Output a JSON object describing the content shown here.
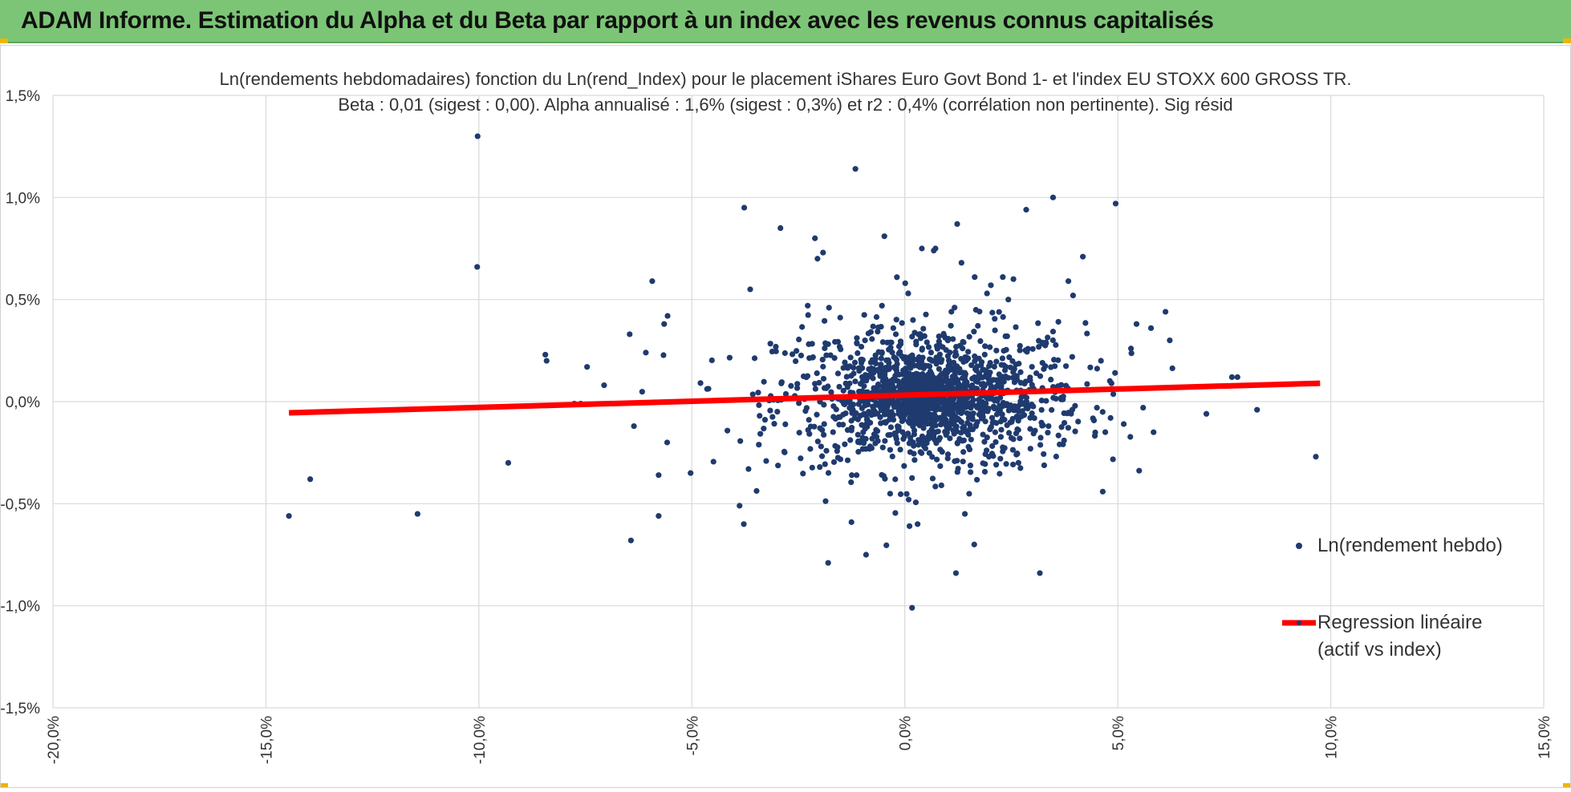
{
  "banner": {
    "title": "ADAM Informe. Estimation du Alpha et du Beta par rapport à un index avec les revenus connus capitalisés",
    "background": "#7cc576"
  },
  "colors": {
    "points": "#1f3a6e",
    "regression": "#ff0000",
    "grid": "#d9d9d9",
    "axis_text": "#333333"
  },
  "chart_data": {
    "type": "scatter",
    "title": "Ln(rendements hebdomadaires) fonction du Ln(rend_Index) pour le placement iShares Euro Govt Bond 1- et l'index EU STOXX 600 GROSS TR.",
    "subtitle": "Beta : 0,01 (sigest : 0,00). Alpha annualisé : 1,6% (sigest : 0,3%) et r2 : 0,4% (corrélation non pertinente). Sig résid",
    "xlabel": "",
    "ylabel": "",
    "xlim": [
      -0.2,
      0.15
    ],
    "ylim": [
      -0.015,
      0.015
    ],
    "x_ticks": [
      -0.2,
      -0.15,
      -0.1,
      -0.05,
      0.0,
      0.05,
      0.1,
      0.15
    ],
    "x_tick_labels": [
      "-20,0%",
      "-15,0%",
      "-10,0%",
      "-5,0%",
      "0,0%",
      "5,0%",
      "10,0%",
      "15,0%"
    ],
    "y_ticks": [
      0.015,
      0.01,
      0.005,
      0.0,
      -0.005,
      -0.01,
      -0.015
    ],
    "y_tick_labels": [
      "1,5%",
      "1,0%",
      "0,5%",
      "0,0%",
      "-0,5%",
      "-1,0%",
      "-1,5%"
    ],
    "grid": true,
    "legend_position": "right",
    "series": [
      {
        "name": "Ln(rendement hebdo)",
        "kind": "points",
        "points": [
          [
            -0.1003,
            0.013
          ],
          [
            -0.1004,
            0.0066
          ],
          [
            -0.0116,
            0.0114
          ],
          [
            0.0348,
            0.01
          ],
          [
            0.0495,
            0.0097
          ],
          [
            0.0285,
            0.0094
          ],
          [
            -0.0377,
            0.0095
          ],
          [
            -0.0048,
            0.0081
          ],
          [
            0.004,
            0.0075
          ],
          [
            0.0418,
            0.0071
          ],
          [
            -0.0593,
            0.0059
          ],
          [
            -0.0557,
            0.0042
          ],
          [
            -0.0565,
            0.0038
          ],
          [
            0.0612,
            0.0044
          ],
          [
            0.0622,
            0.003
          ],
          [
            0.0384,
            0.0059
          ],
          [
            0.0395,
            0.0052
          ],
          [
            0.0544,
            0.0038
          ],
          [
            0.0578,
            0.0036
          ],
          [
            0.0781,
            0.0012
          ],
          [
            0.0531,
            0.0026
          ],
          [
            -0.0844,
            0.0023
          ],
          [
            -0.0841,
            0.002
          ],
          [
            -0.0646,
            0.0033
          ],
          [
            -0.0746,
            0.0017
          ],
          [
            -0.0706,
            0.0008
          ],
          [
            -0.0608,
            0.0024
          ],
          [
            -0.0761,
            -0.0001
          ],
          [
            -0.0776,
            -0.0001
          ],
          [
            -0.1446,
            -0.0056
          ],
          [
            -0.1396,
            -0.0038
          ],
          [
            -0.1144,
            -0.0055
          ],
          [
            -0.0931,
            -0.003
          ],
          [
            -0.0643,
            -0.0068
          ],
          [
            -0.0578,
            -0.0036
          ],
          [
            -0.0578,
            -0.0056
          ],
          [
            -0.0503,
            -0.0035
          ],
          [
            -0.0558,
            -0.002
          ],
          [
            -0.0636,
            -0.0012
          ],
          [
            -0.0378,
            -0.006
          ],
          [
            -0.0388,
            -0.0051
          ],
          [
            -0.0367,
            -0.0033
          ],
          [
            -0.018,
            -0.0079
          ],
          [
            -0.0091,
            -0.0075
          ],
          [
            0.0009,
            -0.0048
          ],
          [
            0.0011,
            -0.0061
          ],
          [
            0.003,
            -0.006
          ],
          [
            0.012,
            -0.0084
          ],
          [
            0.0317,
            -0.0084
          ],
          [
            0.0017,
            -0.0101
          ],
          [
            0.0141,
            -0.0055
          ],
          [
            0.0163,
            -0.007
          ],
          [
            0.0965,
            -0.0027
          ],
          [
            0.0768,
            0.0012
          ],
          [
            0.0827,
            -0.0004
          ],
          [
            0.0708,
            -0.0006
          ],
          [
            0.0584,
            -0.0015
          ],
          [
            0.0514,
            -0.0011
          ],
          [
            0.0483,
            -0.0008
          ],
          [
            0.0451,
            -0.0003
          ],
          [
            -0.0211,
            0.008
          ],
          [
            -0.0205,
            0.007
          ],
          [
            -0.0292,
            0.0085
          ],
          [
            -0.0192,
            0.0073
          ],
          [
            -0.0363,
            0.0055
          ],
          [
            -0.0228,
            0.0047
          ],
          [
            -0.0178,
            0.0046
          ],
          [
            0.0001,
            0.0058
          ],
          [
            0.0008,
            0.0053
          ],
          [
            0.0123,
            0.0087
          ],
          [
            0.0068,
            0.0074
          ],
          [
            0.0072,
            0.0075
          ],
          [
            0.0133,
            0.0068
          ],
          [
            0.0164,
            0.0061
          ],
          [
            0.023,
            0.0061
          ],
          [
            0.0255,
            0.006
          ],
          [
            0.0243,
            0.005
          ],
          [
            0.0202,
            0.0057
          ],
          [
            0.0193,
            0.0053
          ]
        ]
      },
      {
        "name": "Regression linéaire",
        "name_line2": "(actif vs index)",
        "kind": "line",
        "x": [
          -0.1446,
          0.0975
        ],
        "y": [
          -0.00055,
          0.0009
        ]
      }
    ]
  }
}
